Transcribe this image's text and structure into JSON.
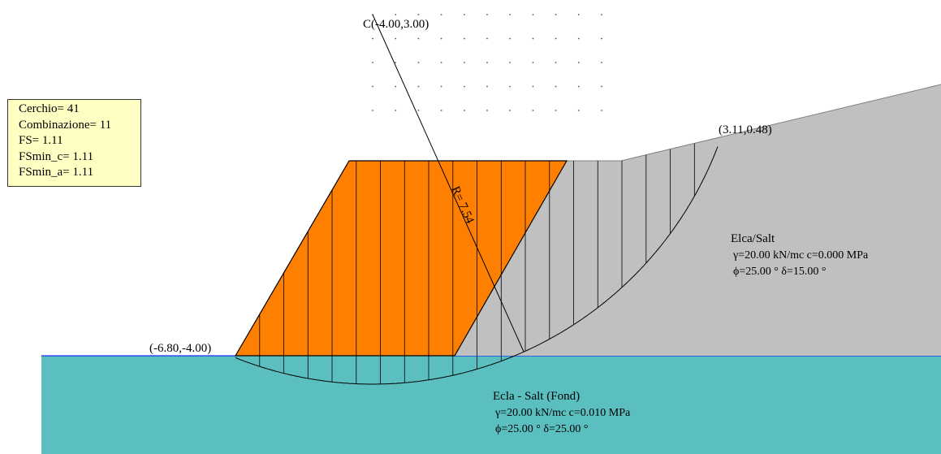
{
  "info_box": {
    "lines": [
      "Cerchio= 41",
      "Combinazione= 11",
      "FS= 1.11",
      "FSmin_c= 1.11",
      "FSmin_a= 1.11"
    ]
  },
  "labels": {
    "center": "C(-4.00,3.00)",
    "radius": "R= 7.54",
    "left_point": "(-6.80,-4.00)",
    "right_point": "(3.11,0.48)"
  },
  "upper_soil": {
    "name": "Elca/Salt",
    "line1": "γ=20.00 kN/mc c=0.000 MPa",
    "line2": "ϕ=25.00 °  δ=15.00 °"
  },
  "lower_soil": {
    "name": "Ecla - Salt (Fond)",
    "line1": "γ=20.00 kN/mc c=0.010 MPa",
    "line2": "ϕ=25.00 °  δ=25.00 °"
  },
  "colors": {
    "upper_soil": "#c0c0c0",
    "lower_soil": "#5bbfbf",
    "embankment": "#ff8000",
    "info_box": "#ffffc4",
    "foundation_line": "#0000ff"
  }
}
